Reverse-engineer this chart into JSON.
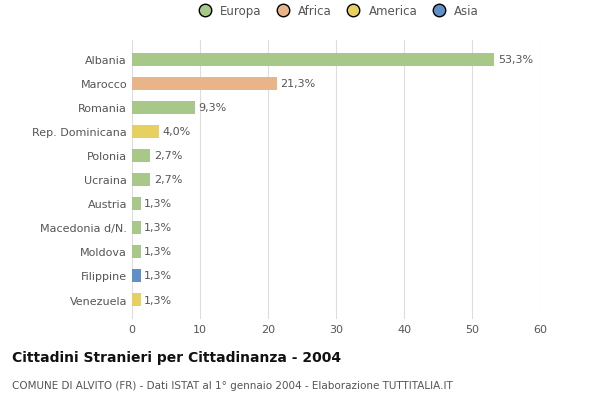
{
  "categories": [
    "Albania",
    "Marocco",
    "Romania",
    "Rep. Dominicana",
    "Polonia",
    "Ucraina",
    "Austria",
    "Macedonia d/N.",
    "Moldova",
    "Filippine",
    "Venezuela"
  ],
  "values": [
    53.3,
    21.3,
    9.3,
    4.0,
    2.7,
    2.7,
    1.3,
    1.3,
    1.3,
    1.3,
    1.3
  ],
  "labels": [
    "53,3%",
    "21,3%",
    "9,3%",
    "4,0%",
    "2,7%",
    "2,7%",
    "1,3%",
    "1,3%",
    "1,3%",
    "1,3%",
    "1,3%"
  ],
  "continents": [
    "Europa",
    "Africa",
    "Europa",
    "America",
    "Europa",
    "Europa",
    "Europa",
    "Europa",
    "Europa",
    "Asia",
    "America"
  ],
  "continent_colors": {
    "Europa": "#a8c88a",
    "Africa": "#e8b488",
    "America": "#e8d060",
    "Asia": "#6090c8"
  },
  "legend_labels": [
    "Europa",
    "Africa",
    "America",
    "Asia"
  ],
  "legend_colors": [
    "#a8c88a",
    "#e8b488",
    "#e8d060",
    "#6090c8"
  ],
  "xlim": [
    0,
    60
  ],
  "xticks": [
    0,
    10,
    20,
    30,
    40,
    50,
    60
  ],
  "title": "Cittadini Stranieri per Cittadinanza - 2004",
  "subtitle": "COMUNE DI ALVITO (FR) - Dati ISTAT al 1° gennaio 2004 - Elaborazione TUTTITALIA.IT",
  "background_color": "#ffffff",
  "grid_color": "#dddddd",
  "bar_height": 0.55,
  "title_fontsize": 10,
  "subtitle_fontsize": 7.5,
  "label_fontsize": 8,
  "tick_fontsize": 8,
  "legend_fontsize": 8.5
}
